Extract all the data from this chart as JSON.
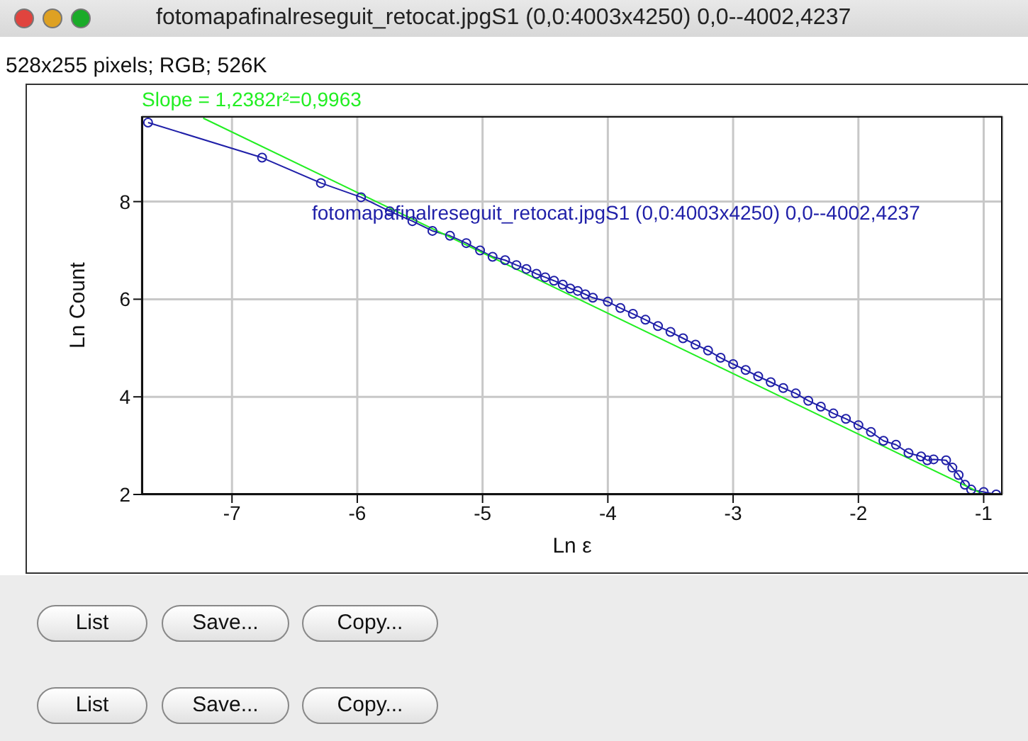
{
  "chart_data": {
    "type": "line",
    "title": "fotomapafinalreseguit_retocat.jpgS1 (0,0:4003x4250) 0,0--4002,4237",
    "subtitle": "528x255 pixels; RGB; 526K",
    "xlabel": "Ln ε",
    "ylabel": "Ln Count",
    "xlim": [
      -7.72,
      -0.85
    ],
    "ylim": [
      2,
      9.75
    ],
    "xticks": [
      -7,
      -6,
      -5,
      -4,
      -3,
      -2,
      -1
    ],
    "yticks": [
      2,
      4,
      6,
      8
    ],
    "grid": true,
    "line_style": "solid",
    "annotations": [
      "List",
      "Save...",
      "Copy...",
      "List",
      "Save...",
      "Copy..."
    ],
    "series": [
      {
        "name": "fotomapafinalreseguit_retocat.jpgS1 (0,0:4003x4250) 0,0--4002,4237",
        "color": "#1f1fa8",
        "marker": "circle",
        "x": [
          -7.67,
          -6.76,
          -6.29,
          -5.97,
          -5.74,
          -5.56,
          -5.4,
          -5.26,
          -5.13,
          -5.02,
          -4.92,
          -4.82,
          -4.73,
          -4.65,
          -4.57,
          -4.5,
          -4.43,
          -4.36,
          -4.3,
          -4.24,
          -4.18,
          -4.12,
          -4.0,
          -3.9,
          -3.8,
          -3.7,
          -3.6,
          -3.5,
          -3.4,
          -3.3,
          -3.2,
          -3.1,
          -3.0,
          -2.9,
          -2.8,
          -2.7,
          -2.6,
          -2.5,
          -2.4,
          -2.3,
          -2.2,
          -2.1,
          -2.0,
          -1.9,
          -1.8,
          -1.7,
          -1.6,
          -1.5,
          -1.45,
          -1.4,
          -1.3,
          -1.25,
          -1.2,
          -1.15,
          -1.1,
          -1.0,
          -0.9
        ],
        "values": [
          9.62,
          8.9,
          8.38,
          8.09,
          7.8,
          7.6,
          7.4,
          7.3,
          7.15,
          7.0,
          6.87,
          6.8,
          6.7,
          6.62,
          6.52,
          6.45,
          6.38,
          6.3,
          6.22,
          6.17,
          6.1,
          6.03,
          5.95,
          5.82,
          5.7,
          5.58,
          5.45,
          5.33,
          5.2,
          5.07,
          4.95,
          4.8,
          4.67,
          4.55,
          4.42,
          4.3,
          4.18,
          4.07,
          3.92,
          3.8,
          3.66,
          3.55,
          3.42,
          3.28,
          3.1,
          3.02,
          2.85,
          2.78,
          2.7,
          2.72,
          2.7,
          2.55,
          2.4,
          2.2,
          2.1,
          2.05,
          2.0
        ]
      },
      {
        "name": "Slope = 1,2382r²=0,9963",
        "color": "#22ee22",
        "marker": "none",
        "x": [
          -7.23,
          -1.0
        ],
        "values": [
          9.71,
          2.0
        ]
      }
    ]
  }
}
